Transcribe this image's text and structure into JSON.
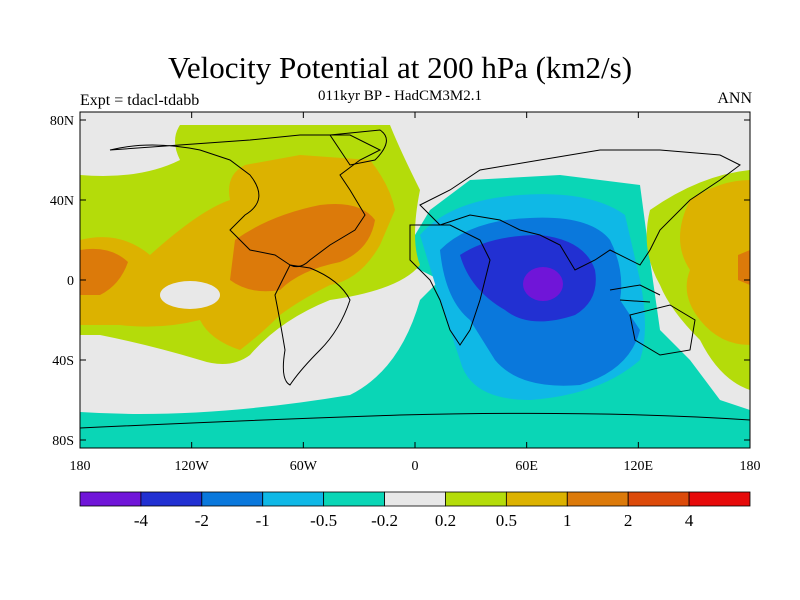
{
  "header": {
    "title": "Velocity Potential at 200 hPa (km2/s)",
    "subtitle": "011kyr BP - HadCM3M2.1",
    "left_label": "Expt = tdacl-tdabb",
    "right_label": "ANN"
  },
  "map": {
    "lat_ticks": [
      "80N",
      "40N",
      "0",
      "40S",
      "80S"
    ],
    "lon_ticks": [
      "180",
      "120W",
      "60W",
      "0",
      "60E",
      "120E",
      "180"
    ],
    "lat_values": [
      80,
      40,
      0,
      -40,
      -80
    ],
    "lon_values": [
      -180,
      -120,
      -60,
      0,
      60,
      120,
      180
    ]
  },
  "colorbar": {
    "colors": [
      "#7015d8",
      "#2230d2",
      "#0a78dc",
      "#0fb8e6",
      "#0ad6b6",
      "#e8e8e8",
      "#b4dc0a",
      "#dcb200",
      "#dc7a0a",
      "#dc4a0a",
      "#e60a0a"
    ],
    "labels": [
      "-4",
      "-2",
      "-1",
      "-0.5",
      "-0.2",
      "0.2",
      "0.5",
      "1",
      "2",
      "4"
    ]
  }
}
